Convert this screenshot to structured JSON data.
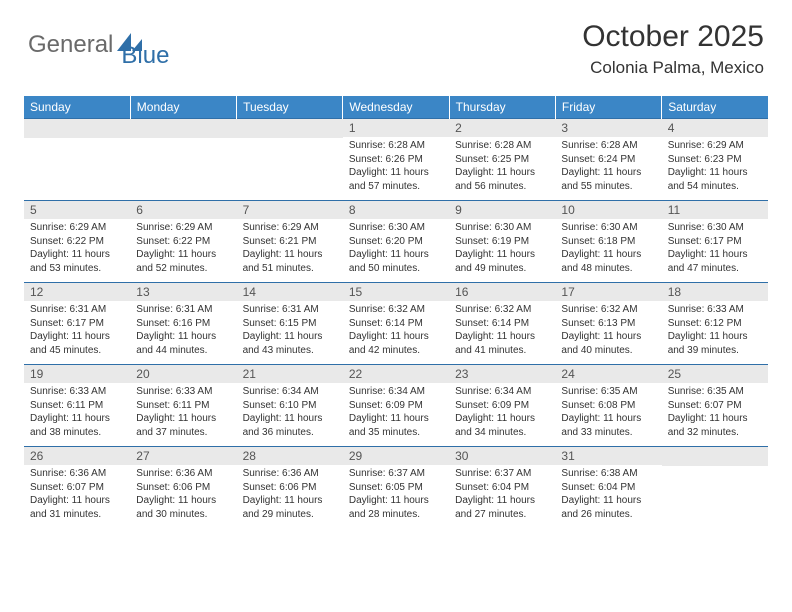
{
  "logo": {
    "text1": "General",
    "text2": "Blue"
  },
  "title": "October 2025",
  "location": "Colonia Palma, Mexico",
  "colors": {
    "header_bg": "#3b86c6",
    "header_text": "#ffffff",
    "daynum_bg": "#e9e9e9",
    "border": "#2f6fa8",
    "logo_gray": "#6a6a6a",
    "logo_blue": "#2f6fa8"
  },
  "weekdays": [
    "Sunday",
    "Monday",
    "Tuesday",
    "Wednesday",
    "Thursday",
    "Friday",
    "Saturday"
  ],
  "weeks": [
    [
      null,
      null,
      null,
      {
        "day": "1",
        "sunrise": "Sunrise: 6:28 AM",
        "sunset": "Sunset: 6:26 PM",
        "daylight": "Daylight: 11 hours and 57 minutes."
      },
      {
        "day": "2",
        "sunrise": "Sunrise: 6:28 AM",
        "sunset": "Sunset: 6:25 PM",
        "daylight": "Daylight: 11 hours and 56 minutes."
      },
      {
        "day": "3",
        "sunrise": "Sunrise: 6:28 AM",
        "sunset": "Sunset: 6:24 PM",
        "daylight": "Daylight: 11 hours and 55 minutes."
      },
      {
        "day": "4",
        "sunrise": "Sunrise: 6:29 AM",
        "sunset": "Sunset: 6:23 PM",
        "daylight": "Daylight: 11 hours and 54 minutes."
      }
    ],
    [
      {
        "day": "5",
        "sunrise": "Sunrise: 6:29 AM",
        "sunset": "Sunset: 6:22 PM",
        "daylight": "Daylight: 11 hours and 53 minutes."
      },
      {
        "day": "6",
        "sunrise": "Sunrise: 6:29 AM",
        "sunset": "Sunset: 6:22 PM",
        "daylight": "Daylight: 11 hours and 52 minutes."
      },
      {
        "day": "7",
        "sunrise": "Sunrise: 6:29 AM",
        "sunset": "Sunset: 6:21 PM",
        "daylight": "Daylight: 11 hours and 51 minutes."
      },
      {
        "day": "8",
        "sunrise": "Sunrise: 6:30 AM",
        "sunset": "Sunset: 6:20 PM",
        "daylight": "Daylight: 11 hours and 50 minutes."
      },
      {
        "day": "9",
        "sunrise": "Sunrise: 6:30 AM",
        "sunset": "Sunset: 6:19 PM",
        "daylight": "Daylight: 11 hours and 49 minutes."
      },
      {
        "day": "10",
        "sunrise": "Sunrise: 6:30 AM",
        "sunset": "Sunset: 6:18 PM",
        "daylight": "Daylight: 11 hours and 48 minutes."
      },
      {
        "day": "11",
        "sunrise": "Sunrise: 6:30 AM",
        "sunset": "Sunset: 6:17 PM",
        "daylight": "Daylight: 11 hours and 47 minutes."
      }
    ],
    [
      {
        "day": "12",
        "sunrise": "Sunrise: 6:31 AM",
        "sunset": "Sunset: 6:17 PM",
        "daylight": "Daylight: 11 hours and 45 minutes."
      },
      {
        "day": "13",
        "sunrise": "Sunrise: 6:31 AM",
        "sunset": "Sunset: 6:16 PM",
        "daylight": "Daylight: 11 hours and 44 minutes."
      },
      {
        "day": "14",
        "sunrise": "Sunrise: 6:31 AM",
        "sunset": "Sunset: 6:15 PM",
        "daylight": "Daylight: 11 hours and 43 minutes."
      },
      {
        "day": "15",
        "sunrise": "Sunrise: 6:32 AM",
        "sunset": "Sunset: 6:14 PM",
        "daylight": "Daylight: 11 hours and 42 minutes."
      },
      {
        "day": "16",
        "sunrise": "Sunrise: 6:32 AM",
        "sunset": "Sunset: 6:14 PM",
        "daylight": "Daylight: 11 hours and 41 minutes."
      },
      {
        "day": "17",
        "sunrise": "Sunrise: 6:32 AM",
        "sunset": "Sunset: 6:13 PM",
        "daylight": "Daylight: 11 hours and 40 minutes."
      },
      {
        "day": "18",
        "sunrise": "Sunrise: 6:33 AM",
        "sunset": "Sunset: 6:12 PM",
        "daylight": "Daylight: 11 hours and 39 minutes."
      }
    ],
    [
      {
        "day": "19",
        "sunrise": "Sunrise: 6:33 AM",
        "sunset": "Sunset: 6:11 PM",
        "daylight": "Daylight: 11 hours and 38 minutes."
      },
      {
        "day": "20",
        "sunrise": "Sunrise: 6:33 AM",
        "sunset": "Sunset: 6:11 PM",
        "daylight": "Daylight: 11 hours and 37 minutes."
      },
      {
        "day": "21",
        "sunrise": "Sunrise: 6:34 AM",
        "sunset": "Sunset: 6:10 PM",
        "daylight": "Daylight: 11 hours and 36 minutes."
      },
      {
        "day": "22",
        "sunrise": "Sunrise: 6:34 AM",
        "sunset": "Sunset: 6:09 PM",
        "daylight": "Daylight: 11 hours and 35 minutes."
      },
      {
        "day": "23",
        "sunrise": "Sunrise: 6:34 AM",
        "sunset": "Sunset: 6:09 PM",
        "daylight": "Daylight: 11 hours and 34 minutes."
      },
      {
        "day": "24",
        "sunrise": "Sunrise: 6:35 AM",
        "sunset": "Sunset: 6:08 PM",
        "daylight": "Daylight: 11 hours and 33 minutes."
      },
      {
        "day": "25",
        "sunrise": "Sunrise: 6:35 AM",
        "sunset": "Sunset: 6:07 PM",
        "daylight": "Daylight: 11 hours and 32 minutes."
      }
    ],
    [
      {
        "day": "26",
        "sunrise": "Sunrise: 6:36 AM",
        "sunset": "Sunset: 6:07 PM",
        "daylight": "Daylight: 11 hours and 31 minutes."
      },
      {
        "day": "27",
        "sunrise": "Sunrise: 6:36 AM",
        "sunset": "Sunset: 6:06 PM",
        "daylight": "Daylight: 11 hours and 30 minutes."
      },
      {
        "day": "28",
        "sunrise": "Sunrise: 6:36 AM",
        "sunset": "Sunset: 6:06 PM",
        "daylight": "Daylight: 11 hours and 29 minutes."
      },
      {
        "day": "29",
        "sunrise": "Sunrise: 6:37 AM",
        "sunset": "Sunset: 6:05 PM",
        "daylight": "Daylight: 11 hours and 28 minutes."
      },
      {
        "day": "30",
        "sunrise": "Sunrise: 6:37 AM",
        "sunset": "Sunset: 6:04 PM",
        "daylight": "Daylight: 11 hours and 27 minutes."
      },
      {
        "day": "31",
        "sunrise": "Sunrise: 6:38 AM",
        "sunset": "Sunset: 6:04 PM",
        "daylight": "Daylight: 11 hours and 26 minutes."
      },
      null
    ]
  ]
}
